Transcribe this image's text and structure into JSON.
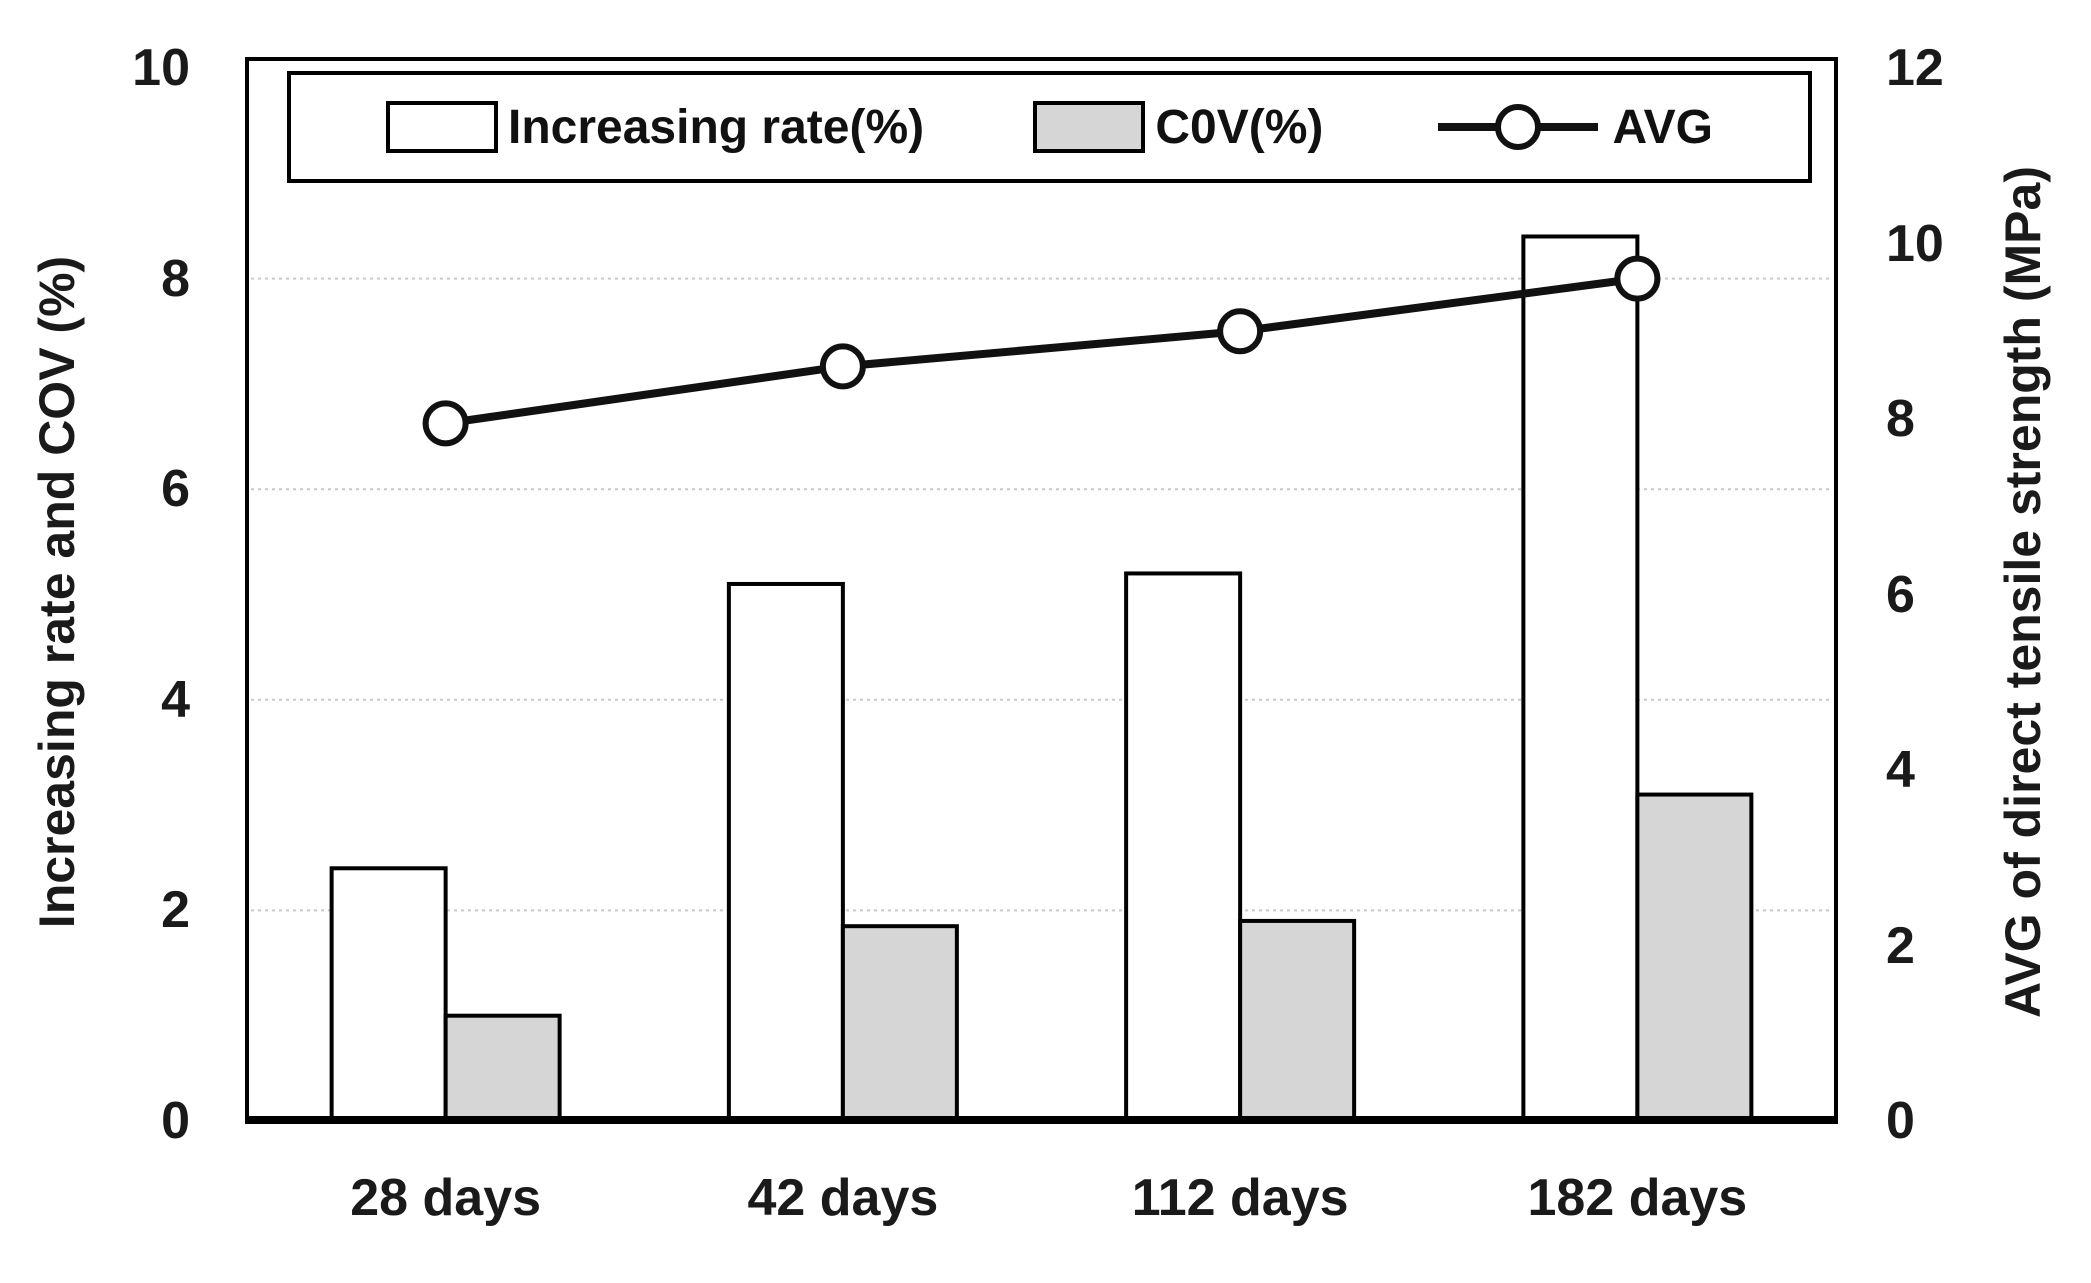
{
  "chart_data": {
    "type": "bar+line",
    "categories": [
      "28 days",
      "42 days",
      "112 days",
      "182 days"
    ],
    "series": [
      {
        "name": "Increasing rate(%)",
        "type": "bar",
        "axis": "left",
        "values": [
          2.4,
          5.1,
          5.2,
          8.4
        ],
        "fill": "#ffffff",
        "stroke": "#000000"
      },
      {
        "name": "C0V(%)",
        "type": "bar",
        "axis": "left",
        "values": [
          1.0,
          1.85,
          1.9,
          3.1
        ],
        "fill": "#d6d6d6",
        "stroke": "#000000"
      },
      {
        "name": "AVG",
        "type": "line",
        "axis": "right",
        "values": [
          7.95,
          8.6,
          9.0,
          9.6
        ],
        "color": "#111111",
        "marker": "open-circle"
      }
    ],
    "left_axis": {
      "title": "Increasing rate and COV (%)",
      "ticks": [
        0,
        2,
        4,
        6,
        8,
        10
      ],
      "range": [
        0,
        10
      ]
    },
    "right_axis": {
      "title": "AVG of direct tensile strength (MPa)",
      "ticks": [
        0,
        2,
        4,
        6,
        8,
        10,
        12
      ],
      "range": [
        0,
        12
      ]
    },
    "gridlines": {
      "at_left_values": [
        2,
        4,
        6,
        8
      ],
      "color": "#c9c9c9",
      "style": "dotted"
    },
    "legend_position": "top-inside",
    "frame_color": "#000000",
    "background": "#ffffff"
  }
}
